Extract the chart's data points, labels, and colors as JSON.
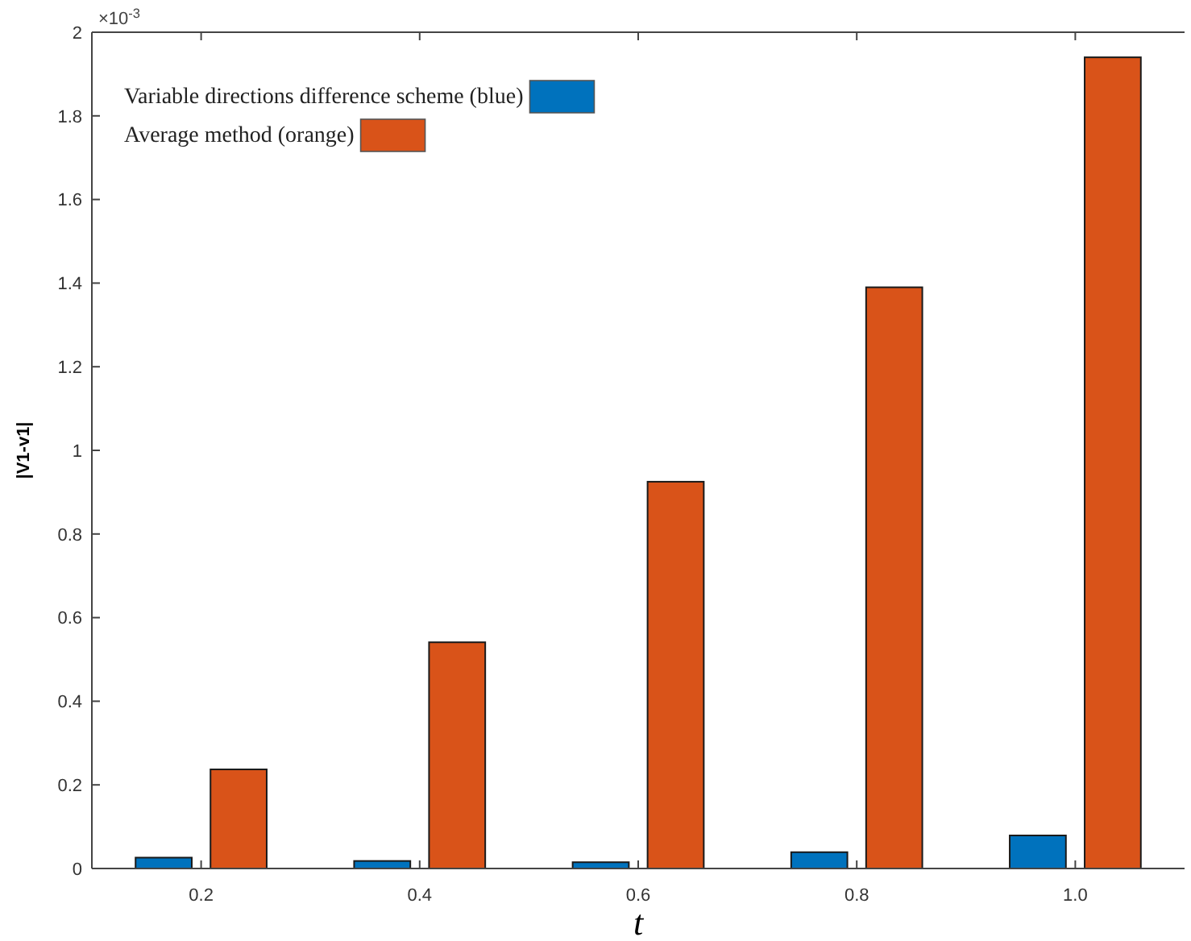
{
  "chart_data": {
    "type": "bar",
    "categories": [
      "0.2",
      "0.4",
      "0.6",
      "0.8",
      "1.0"
    ],
    "series": [
      {
        "name": "Variable directions difference scheme (blue)",
        "color": "#0072bd",
        "values": [
          0.026,
          0.018,
          0.015,
          0.039,
          0.079
        ]
      },
      {
        "name": "Average method (orange)",
        "color": "#d95319",
        "values": [
          0.237,
          0.541,
          0.925,
          1.39,
          1.94
        ]
      }
    ],
    "ylim": [
      0,
      2
    ],
    "yticks": [
      0,
      0.2,
      0.4,
      0.6,
      0.8,
      1,
      1.2,
      1.4,
      1.6,
      1.8,
      2
    ],
    "xlabel": "t",
    "ylabel": "|V1-v1|",
    "annotations": [
      "×10$^{-3}$"
    ],
    "legend": "top left",
    "grid": false
  }
}
